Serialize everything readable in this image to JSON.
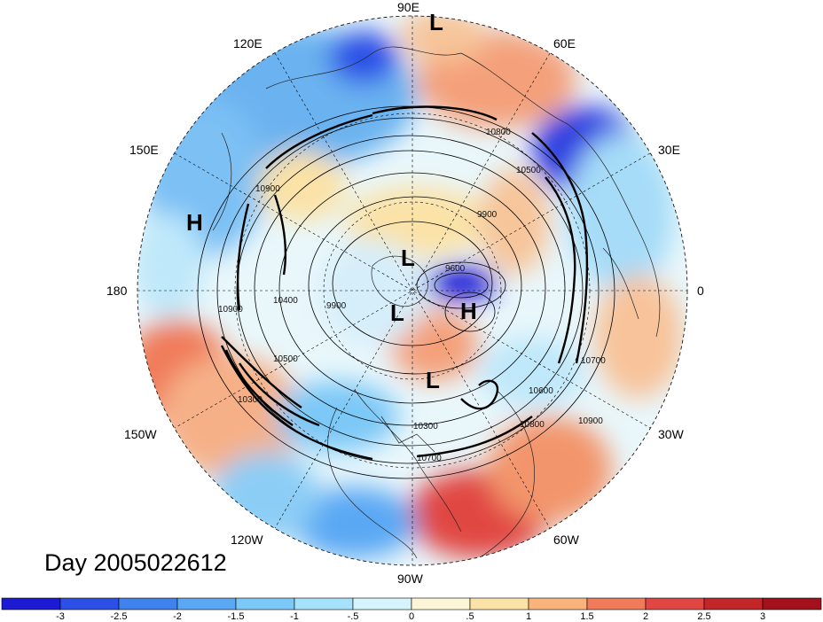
{
  "caption": "Day 2005022612",
  "longitude_labels": [
    "90E",
    "60E",
    "30E",
    "0",
    "30W",
    "60W",
    "90W",
    "120W",
    "150W",
    "180",
    "150E",
    "120E"
  ],
  "pressure_systems": [
    {
      "label": "L"
    },
    {
      "label": "H"
    },
    {
      "label": "L"
    },
    {
      "label": "L"
    },
    {
      "label": "H"
    },
    {
      "label": "L"
    }
  ],
  "contour_labels": [
    "10800",
    "10500",
    "9900",
    "9600",
    "10900",
    "10900",
    "10400",
    "9900",
    "10500",
    "10300",
    "10300",
    "10700",
    "10600",
    "10800",
    "10900",
    "10700"
  ],
  "colorbar": {
    "ticks": [
      "-3",
      "-2.5",
      "-2",
      "-1.5",
      "-1",
      "-.5",
      "0",
      ".5",
      "1",
      "1.5",
      "2",
      "2.5",
      "3"
    ],
    "colors": [
      "#1d1ad4",
      "#2c4fe6",
      "#3f82ee",
      "#5aa8f4",
      "#7cc8f7",
      "#a6e3fa",
      "#d6f4fc",
      "#fdf6d6",
      "#fbe2a6",
      "#f8b47b",
      "#f07b5a",
      "#e14642",
      "#c32629",
      "#a3121c"
    ]
  }
}
